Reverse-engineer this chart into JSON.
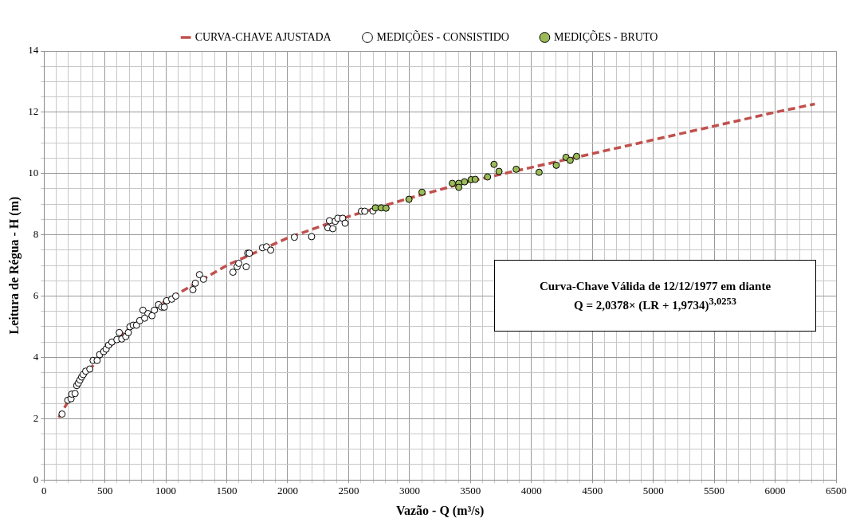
{
  "chart_data": {
    "type": "scatter",
    "xlabel": "Vazão - Q (m³/s)",
    "ylabel": "Leitura de Régua - H (m)",
    "legend": "top",
    "grid": true,
    "xlim": [
      0,
      6500
    ],
    "ylim": [
      0,
      14
    ],
    "xticks": [
      0,
      {
        "value": 100,
        "label": null
      },
      {
        "value": 200,
        "label": null
      },
      {
        "value": 300,
        "label": null
      },
      {
        "value": 400,
        "label": null
      },
      500,
      {
        "value": 600,
        "label": null
      },
      {
        "value": 700,
        "label": null
      },
      {
        "value": 800,
        "label": null
      },
      {
        "value": 900,
        "label": null
      },
      1000,
      {
        "value": 1100,
        "label": null
      },
      {
        "value": 1200,
        "label": null
      },
      {
        "value": 1300,
        "label": null
      },
      {
        "value": 1400,
        "label": null
      },
      1500,
      {
        "value": 1600,
        "label": null
      },
      {
        "value": 1700,
        "label": null
      },
      {
        "value": 1800,
        "label": null
      },
      {
        "value": 1900,
        "label": null
      },
      2000,
      {
        "value": 2100,
        "label": null
      },
      {
        "value": 2200,
        "label": null
      },
      {
        "value": 2300,
        "label": null
      },
      {
        "value": 2400,
        "label": null
      },
      2500,
      {
        "value": 2600,
        "label": null
      },
      {
        "value": 2700,
        "label": null
      },
      {
        "value": 2800,
        "label": null
      },
      {
        "value": 2900,
        "label": null
      },
      3000,
      {
        "value": 3100,
        "label": null
      },
      {
        "value": 3200,
        "label": null
      },
      {
        "value": 3300,
        "label": null
      },
      {
        "value": 3400,
        "label": null
      },
      3500,
      {
        "value": 3600,
        "label": null
      },
      {
        "value": 3700,
        "label": null
      },
      {
        "value": 3800,
        "label": null
      },
      {
        "value": 3900,
        "label": null
      },
      4000,
      {
        "value": 4100,
        "label": null
      },
      {
        "value": 4200,
        "label": null
      },
      {
        "value": 4300,
        "label": null
      },
      {
        "value": 4400,
        "label": null
      },
      4500,
      {
        "value": 4600,
        "label": null
      },
      {
        "value": 4700,
        "label": null
      },
      {
        "value": 4800,
        "label": null
      },
      {
        "value": 4900,
        "label": null
      },
      5000,
      {
        "value": 5100,
        "label": null
      },
      {
        "value": 5200,
        "label": null
      },
      {
        "value": 5300,
        "label": null
      },
      {
        "value": 5400,
        "label": null
      },
      5500,
      {
        "value": 5600,
        "label": null
      },
      {
        "value": 5700,
        "label": null
      },
      {
        "value": 5800,
        "label": null
      },
      {
        "value": 5900,
        "label": null
      },
      6000,
      {
        "value": 6100,
        "label": null
      },
      {
        "value": 6200,
        "label": null
      },
      {
        "value": 6300,
        "label": null
      },
      {
        "value": 6400,
        "label": null
      },
      6500
    ],
    "yticks": [
      0,
      {
        "value": 0.5,
        "label": null
      },
      {
        "value": 1,
        "label": null
      },
      {
        "value": 1.5,
        "label": null
      },
      2,
      {
        "value": 2.5,
        "label": null
      },
      {
        "value": 3,
        "label": null
      },
      {
        "value": 3.5,
        "label": null
      },
      4,
      {
        "value": 4.5,
        "label": null
      },
      {
        "value": 5,
        "label": null
      },
      {
        "value": 5.5,
        "label": null
      },
      6,
      {
        "value": 6.5,
        "label": null
      },
      {
        "value": 7,
        "label": null
      },
      {
        "value": 7.5,
        "label": null
      },
      8,
      {
        "value": 8.5,
        "label": null
      },
      {
        "value": 9,
        "label": null
      },
      {
        "value": 9.5,
        "label": null
      },
      10,
      {
        "value": 10.5,
        "label": null
      },
      {
        "value": 11,
        "label": null
      },
      {
        "value": 11.5,
        "label": null
      },
      12,
      {
        "value": 12.5,
        "label": null
      },
      {
        "value": 13,
        "label": null
      },
      {
        "value": 13.5,
        "label": null
      },
      14
    ],
    "annotations": [
      "Curva-Chave Válida de 12/12/1977 em diante",
      "Q = 2,0378× (LR + 1,9734)$^{3,0253}$"
    ],
    "series": [
      {
        "name": "MEDIÇÕES - CONSISTIDO",
        "marker": "circle",
        "color": "#ffffff",
        "x": [
          148,
          195,
          222,
          228,
          255,
          269,
          282,
          295,
          309,
          322,
          342,
          376,
          403,
          436,
          457,
          490,
          510,
          530,
          557,
          598,
          618,
          638,
          671,
          692,
          705,
          732,
          759,
          786,
          812,
          853,
          886,
          826,
          906,
          940,
          967,
          987,
          1007,
          1048,
          1081,
          1222,
          1242,
          1276,
          1309,
          1551,
          1585,
          1598,
          1659,
          1672,
          1685,
          1793,
          1826,
          1860,
          2055,
          2196,
          2330,
          2343,
          2370,
          2390,
          2411,
          2451,
          2471,
          2605,
          2632,
          2700
        ],
        "values": [
          2.15,
          2.6,
          2.65,
          2.8,
          2.82,
          3.08,
          3.16,
          3.26,
          3.36,
          3.44,
          3.55,
          3.62,
          3.9,
          3.9,
          4.09,
          4.19,
          4.27,
          4.4,
          4.5,
          4.58,
          4.81,
          4.6,
          4.68,
          4.81,
          5.0,
          5.05,
          5.05,
          5.2,
          5.54,
          5.43,
          5.36,
          5.28,
          5.54,
          5.72,
          5.64,
          5.64,
          5.85,
          5.9,
          6.0,
          6.21,
          6.42,
          6.7,
          6.55,
          6.78,
          6.96,
          7.07,
          6.96,
          7.4,
          7.4,
          7.58,
          7.61,
          7.5,
          7.92,
          7.94,
          8.23,
          8.46,
          8.2,
          8.44,
          8.54,
          8.54,
          8.38,
          8.77,
          8.77,
          8.78
        ]
      },
      {
        "name": "MEDIÇÕES - BRUTO",
        "marker": "circle",
        "color": "#9bbb59",
        "x": [
          2720,
          2767,
          2807,
          2995,
          3102,
          3351,
          3404,
          3404,
          3451,
          3505,
          3539,
          3640,
          3693,
          3734,
          3875,
          4063,
          4204,
          4284,
          4318,
          4371
        ],
        "values": [
          8.88,
          8.88,
          8.87,
          9.16,
          9.39,
          9.68,
          9.68,
          9.55,
          9.73,
          9.8,
          9.81,
          9.89,
          10.3,
          10.07,
          10.14,
          10.04,
          10.27,
          10.53,
          10.43,
          10.56
        ]
      },
      {
        "name": "CURVA-CHAVE AJUSTADA",
        "type": "line",
        "marker": "none",
        "line_style": "dashed",
        "color": "#c0504d",
        "x": [
          121,
          300,
          500,
          700,
          1000,
          1500,
          2000,
          2500,
          3000,
          3500,
          4000,
          4500,
          5000,
          5500,
          6000,
          6326
        ],
        "values": [
          2.04,
          3.25,
          4.2,
          4.95,
          5.85,
          7.0,
          7.9,
          8.6,
          9.2,
          9.75,
          10.2,
          10.65,
          11.1,
          11.55,
          12.0,
          12.27
        ]
      }
    ]
  }
}
